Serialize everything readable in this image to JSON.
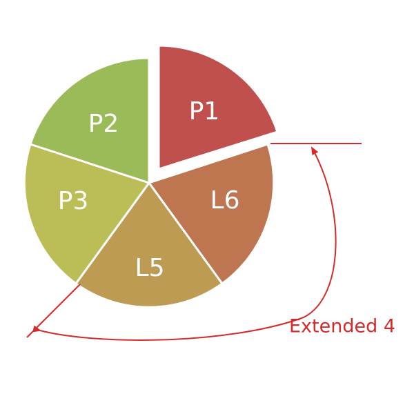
{
  "diagram": {
    "slices": [
      {
        "id": "p1",
        "label": "P1",
        "color": "#c0504d",
        "exploded": true
      },
      {
        "id": "l6",
        "label": "L6",
        "color": "#bd7650"
      },
      {
        "id": "l5",
        "label": "L5",
        "color": "#be9b53"
      },
      {
        "id": "p3",
        "label": "P3",
        "color": "#bbbd56"
      },
      {
        "id": "p2",
        "label": "P2",
        "color": "#9bbb59"
      }
    ],
    "annotation": {
      "text": "Extended 4",
      "color": "#d42a2a"
    }
  }
}
